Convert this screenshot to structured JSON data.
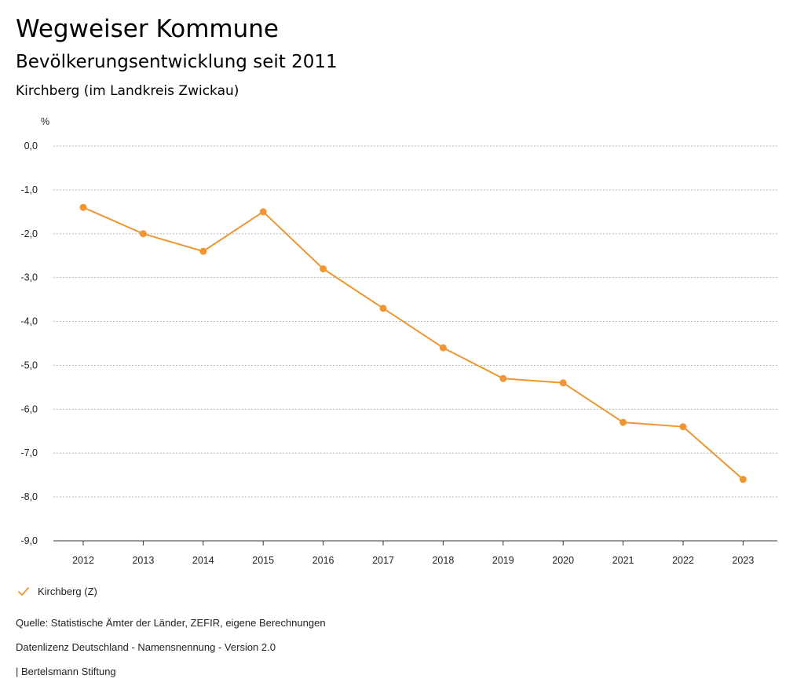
{
  "header": {
    "title": "Wegweiser Kommune",
    "subtitle": "Bevölkerungsentwicklung seit 2011",
    "region": "Kirchberg (im Landkreis Zwickau)"
  },
  "chart_data": {
    "type": "line",
    "title": "Bevölkerungsentwicklung seit 2011",
    "ylabel": "%",
    "xlabel": "",
    "categories": [
      "2012",
      "2013",
      "2014",
      "2015",
      "2016",
      "2017",
      "2018",
      "2019",
      "2020",
      "2021",
      "2022",
      "2023"
    ],
    "series": [
      {
        "name": "Kirchberg (Z)",
        "values": [
          -1.4,
          -2.0,
          -2.4,
          -1.5,
          -2.8,
          -3.7,
          -4.6,
          -5.3,
          -5.4,
          -6.3,
          -6.4,
          -7.6
        ]
      }
    ],
    "ylim": [
      -9,
      0
    ],
    "yticks": [
      0,
      -1,
      -2,
      -3,
      -4,
      -5,
      -6,
      -7,
      -8,
      -9
    ],
    "ytick_labels": [
      "0,0",
      "-1,0",
      "-2,0",
      "-3,0",
      "-4,0",
      "-5,0",
      "-6,0",
      "-7,0",
      "-8,0",
      "-9,0"
    ],
    "grid": true,
    "legend": "bottom-left"
  },
  "colors": {
    "series": "#ee9632",
    "grid": "#b4b4b4",
    "axis": "#333333"
  },
  "legend": {
    "label": "Kirchberg (Z)",
    "icon": "check-icon"
  },
  "footer": {
    "source": "Quelle: Statistische Ämter der Länder, ZEFIR, eigene Berechnungen",
    "license": "Datenlizenz Deutschland - Namensnennung - Version 2.0",
    "publisher": "| Bertelsmann Stiftung"
  }
}
